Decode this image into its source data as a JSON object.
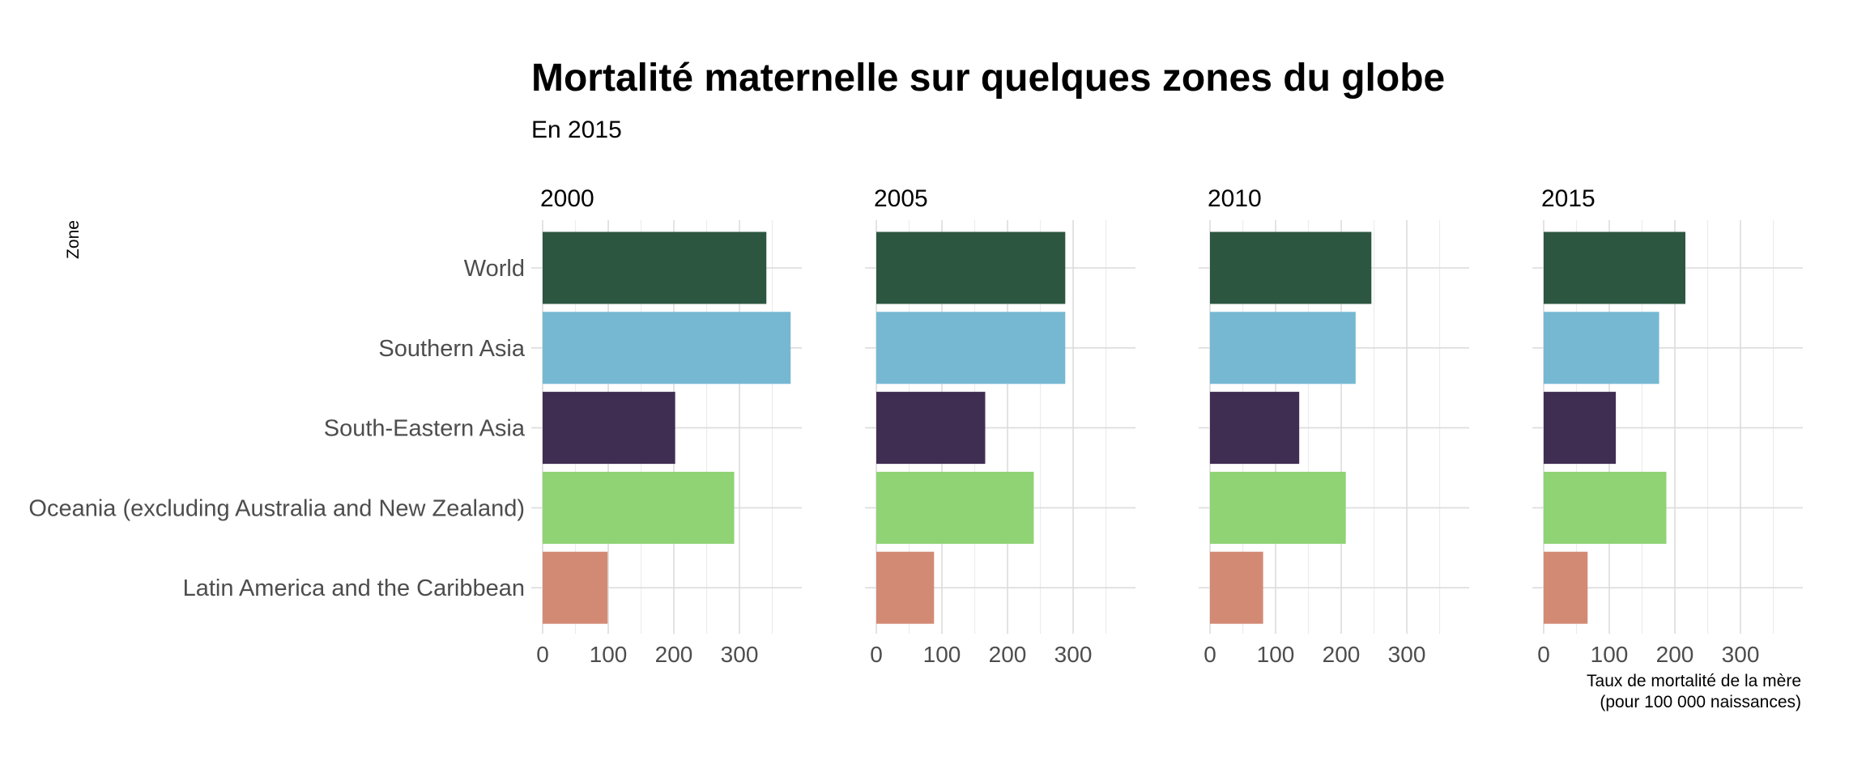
{
  "chart_data": {
    "type": "bar",
    "orientation": "horizontal",
    "title": "Mortalité maternelle sur quelques zones du globe",
    "subtitle": "En 2015",
    "ylabel": "Zone",
    "xlabel_lines": [
      "Taux de mortalité de la mère",
      "(pour 100 000 naissances)"
    ],
    "categories": [
      "World",
      "Southern Asia",
      "South-Eastern Asia",
      "Oceania (excluding Australia and New Zealand)",
      "Latin America and the Caribbean"
    ],
    "colors": [
      "#2d5641",
      "#76b8d2",
      "#3f2e52",
      "#8fd374",
      "#d38a75"
    ],
    "xlim": [
      0,
      395
    ],
    "xticks": [
      0,
      100,
      200,
      300
    ],
    "grid": true,
    "facets": [
      {
        "label": "2000",
        "values": [
          341,
          378,
          202,
          292,
          99
        ]
      },
      {
        "label": "2005",
        "values": [
          288,
          288,
          166,
          240,
          88
        ]
      },
      {
        "label": "2010",
        "values": [
          246,
          222,
          136,
          207,
          81
        ]
      },
      {
        "label": "2015",
        "values": [
          216,
          176,
          110,
          187,
          67
        ]
      }
    ]
  }
}
